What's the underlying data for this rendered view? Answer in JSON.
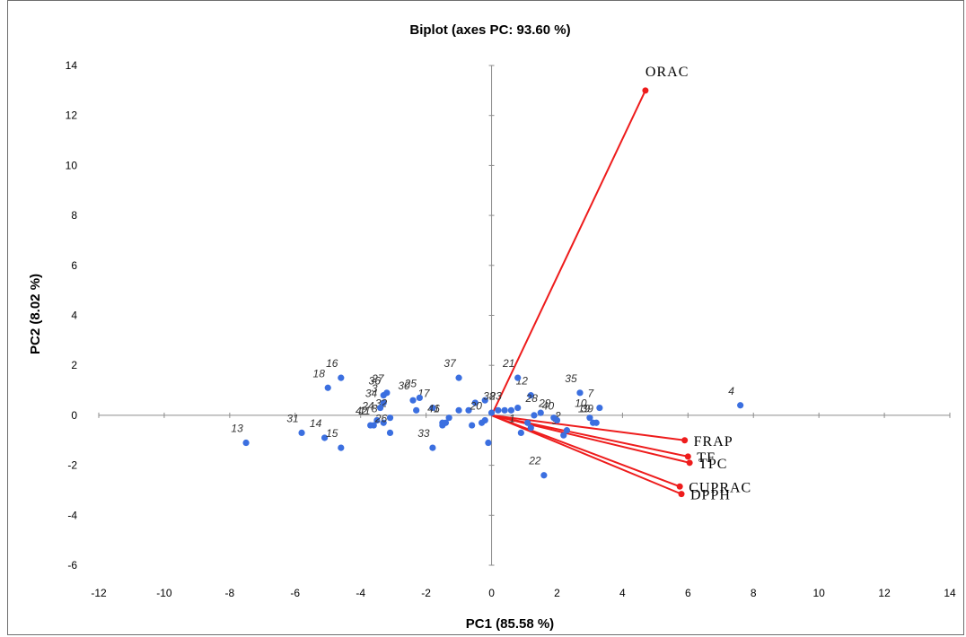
{
  "colors": {
    "observations": "#3b6fe0",
    "vectors": "#ee1c1c",
    "axis": "#8c8c8c"
  },
  "chart_data": {
    "type": "scatter",
    "title": "Biplot (axes PC: 93.60 %)",
    "xlabel": "PC1 (85.58 %)",
    "ylabel": "PC2 (8.02 %)",
    "xlim": [
      -12,
      14
    ],
    "ylim": [
      -6,
      14
    ],
    "xticks": [
      -12,
      -10,
      -8,
      -6,
      -4,
      -2,
      0,
      2,
      4,
      6,
      8,
      10,
      12,
      14
    ],
    "yticks": [
      -6,
      -4,
      -2,
      0,
      2,
      4,
      6,
      8,
      10,
      12,
      14
    ],
    "grid": false,
    "observations": [
      {
        "label": "1",
        "x": 0.9,
        "y": -0.7
      },
      {
        "label": "2",
        "x": 2.3,
        "y": -0.6
      },
      {
        "label": "3",
        "x": -3.3,
        "y": 0.5
      },
      {
        "label": "4",
        "x": 7.6,
        "y": 0.4
      },
      {
        "label": "6",
        "x": -1.4,
        "y": -0.3
      },
      {
        "label": "7",
        "x": 3.3,
        "y": 0.3
      },
      {
        "label": "8",
        "x": -3.3,
        "y": -0.3
      },
      {
        "label": "9",
        "x": 2.2,
        "y": -0.8
      },
      {
        "label": "10",
        "x": 3.0,
        "y": -0.1
      },
      {
        "label": "11",
        "x": -3.6,
        "y": -0.4
      },
      {
        "label": "12",
        "x": 1.2,
        "y": 0.8
      },
      {
        "label": "13",
        "x": -7.5,
        "y": -1.1
      },
      {
        "label": "14",
        "x": -5.1,
        "y": -0.9
      },
      {
        "label": "15",
        "x": -4.6,
        "y": -1.3
      },
      {
        "label": "16",
        "x": -4.6,
        "y": 1.5
      },
      {
        "label": "17",
        "x": -1.8,
        "y": 0.3
      },
      {
        "label": "18",
        "x": -5.0,
        "y": 1.1
      },
      {
        "label": "19",
        "x": 3.1,
        "y": -0.3
      },
      {
        "label": "20",
        "x": -0.2,
        "y": -0.2
      },
      {
        "label": "21",
        "x": 0.8,
        "y": 1.5
      },
      {
        "label": "22",
        "x": 1.6,
        "y": -2.4
      },
      {
        "label": "23",
        "x": 0.4,
        "y": 0.2
      },
      {
        "label": "24",
        "x": -3.5,
        "y": -0.2
      },
      {
        "label": "25",
        "x": -2.2,
        "y": 0.7
      },
      {
        "label": "26",
        "x": -3.1,
        "y": -0.7
      },
      {
        "label": "27",
        "x": -3.2,
        "y": 0.9
      },
      {
        "label": "28",
        "x": 1.5,
        "y": 0.1
      },
      {
        "label": "29",
        "x": 1.9,
        "y": -0.1
      },
      {
        "label": "30",
        "x": -2.4,
        "y": 0.6
      },
      {
        "label": "31",
        "x": -5.8,
        "y": -0.7
      },
      {
        "label": "32",
        "x": -3.1,
        "y": -0.1
      },
      {
        "label": "33",
        "x": -1.8,
        "y": -1.3
      },
      {
        "label": "34",
        "x": -3.4,
        "y": 0.3
      },
      {
        "label": "35",
        "x": 2.7,
        "y": 0.9
      },
      {
        "label": "36",
        "x": -3.3,
        "y": 0.8
      },
      {
        "label": "37",
        "x": -1.0,
        "y": 1.5
      },
      {
        "label": "38",
        "x": 0.2,
        "y": 0.2
      },
      {
        "label": "39",
        "x": 3.2,
        "y": -0.3
      },
      {
        "label": "40",
        "x": 2.0,
        "y": -0.2
      },
      {
        "label": "41",
        "x": -1.5,
        "y": -0.3
      },
      {
        "label": "42",
        "x": -3.7,
        "y": -0.4
      }
    ],
    "extra_points": [
      {
        "x": -2.3,
        "y": 0.2
      },
      {
        "x": -1.3,
        "y": -0.1
      },
      {
        "x": -1.5,
        "y": -0.4
      },
      {
        "x": -1.0,
        "y": 0.2
      },
      {
        "x": -0.7,
        "y": 0.2
      },
      {
        "x": -0.5,
        "y": 0.5
      },
      {
        "x": -0.2,
        "y": 0.6
      },
      {
        "x": -0.3,
        "y": -0.3
      },
      {
        "x": -0.6,
        "y": -0.4
      },
      {
        "x": -0.1,
        "y": -1.1
      },
      {
        "x": 0.0,
        "y": 0.1
      },
      {
        "x": 0.6,
        "y": 0.2
      },
      {
        "x": 0.8,
        "y": 0.3
      },
      {
        "x": 1.1,
        "y": -0.3
      },
      {
        "x": 1.3,
        "y": 0.0
      },
      {
        "x": 1.2,
        "y": -0.5
      }
    ],
    "variables": [
      {
        "name": "ORAC",
        "x": 4.7,
        "y": 13.0
      },
      {
        "name": "FRAP",
        "x": 5.9,
        "y": -1.0
      },
      {
        "name": "TF",
        "x": 6.0,
        "y": -1.65
      },
      {
        "name": "TPC",
        "x": 6.05,
        "y": -1.9
      },
      {
        "name": "CUPRAC",
        "x": 5.75,
        "y": -2.85
      },
      {
        "name": "DPPH",
        "x": 5.8,
        "y": -3.15
      }
    ]
  }
}
